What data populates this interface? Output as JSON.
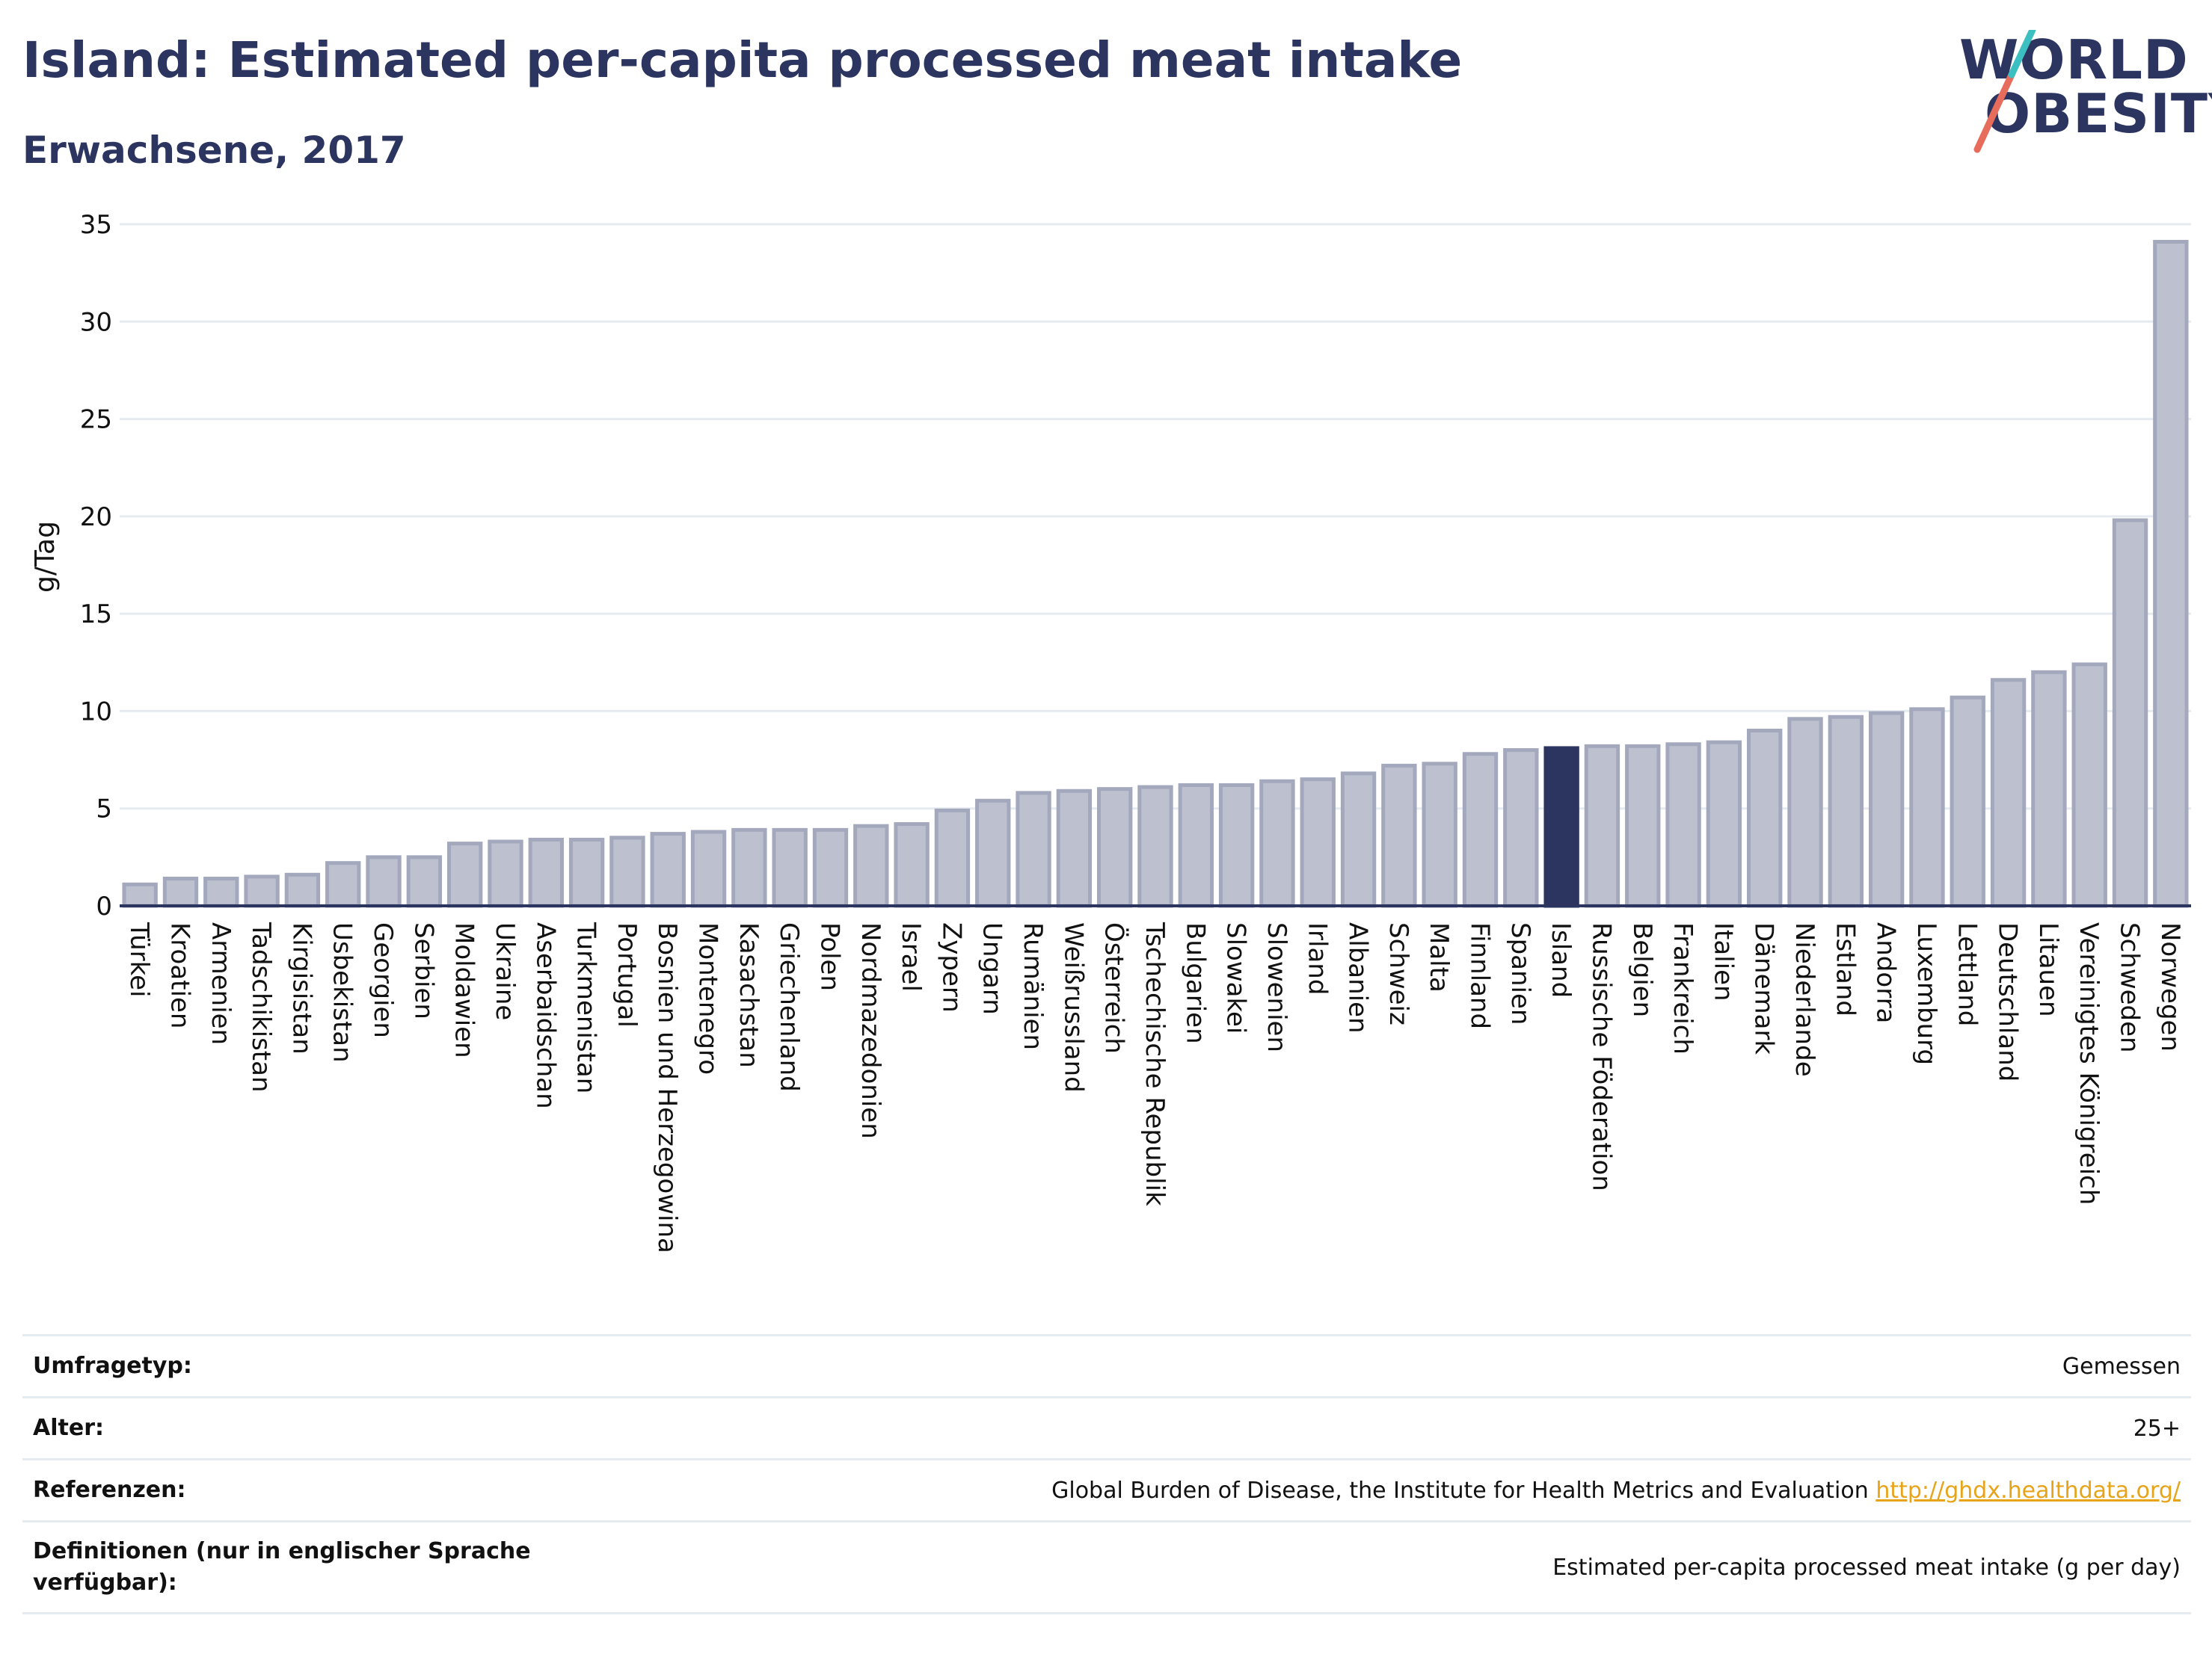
{
  "header": {
    "title": "Island: Estimated per-capita processed meat intake",
    "subtitle": "Erwachsene, 2017"
  },
  "logo": {
    "line1": "WORLD",
    "line2": "OBESITY",
    "slash_colors": [
      "#e86c5b",
      "#3cbfc0"
    ]
  },
  "colors": {
    "bar_default": "#bcc0cf",
    "bar_default_stroke": "#a3a8bd",
    "bar_highlight": "#2c3560",
    "axis": "#2c3560",
    "grid": "#e6ebf0",
    "title": "#2c3560",
    "link": "#e7a41a"
  },
  "chart_data": {
    "type": "bar",
    "title": "Island: Estimated per-capita processed meat intake",
    "subtitle": "Erwachsene, 2017",
    "ylabel": "g/Tag",
    "xlabel": "",
    "ylim": [
      0,
      35
    ],
    "yticks": [
      0,
      5,
      10,
      15,
      20,
      25,
      30,
      35
    ],
    "grid": true,
    "highlight": "Island",
    "categories": [
      "Türkei",
      "Kroatien",
      "Armenien",
      "Tadschikistan",
      "Kirgisistan",
      "Usbekistan",
      "Georgien",
      "Serbien",
      "Moldawien",
      "Ukraine",
      "Aserbaidschan",
      "Turkmenistan",
      "Portugal",
      "Bosnien und Herzegowina",
      "Montenegro",
      "Kasachstan",
      "Griechenland",
      "Polen",
      "Nordmazedonien",
      "Israel",
      "Zypern",
      "Ungarn",
      "Rumänien",
      "Weißrussland",
      "Österreich",
      "Tschechische Republik",
      "Bulgarien",
      "Slowakei",
      "Slowenien",
      "Irland",
      "Albanien",
      "Schweiz",
      "Malta",
      "Finnland",
      "Spanien",
      "Island",
      "Russische Föderation",
      "Belgien",
      "Frankreich",
      "Italien",
      "Dänemark",
      "Niederlande",
      "Estland",
      "Andorra",
      "Luxemburg",
      "Lettland",
      "Deutschland",
      "Litauen",
      "Vereinigtes Königreich",
      "Schweden",
      "Norwegen"
    ],
    "values": [
      1.1,
      1.4,
      1.4,
      1.5,
      1.6,
      2.2,
      2.5,
      2.5,
      3.2,
      3.3,
      3.4,
      3.4,
      3.5,
      3.7,
      3.8,
      3.9,
      3.9,
      3.9,
      4.1,
      4.2,
      4.9,
      5.4,
      5.8,
      5.9,
      6.0,
      6.1,
      6.2,
      6.2,
      6.4,
      6.5,
      6.8,
      7.2,
      7.3,
      7.8,
      8.0,
      8.1,
      8.2,
      8.2,
      8.3,
      8.4,
      9.0,
      9.6,
      9.7,
      9.9,
      10.1,
      10.7,
      11.6,
      12.0,
      12.4,
      19.8,
      34.1
    ]
  },
  "info": {
    "rows": [
      {
        "label": "Umfragetyp:",
        "value": "Gemessen",
        "link": ""
      },
      {
        "label": "Alter:",
        "value": "25+",
        "link": ""
      },
      {
        "label": "Referenzen:",
        "value": "Global Burden of Disease, the Institute for Health Metrics and Evaluation",
        "link": "http://ghdx.healthdata.org/"
      },
      {
        "label": "Definitionen (nur in englischer Sprache verfügbar):",
        "value": "Estimated per-capita processed meat intake (g per day)",
        "link": ""
      }
    ]
  }
}
